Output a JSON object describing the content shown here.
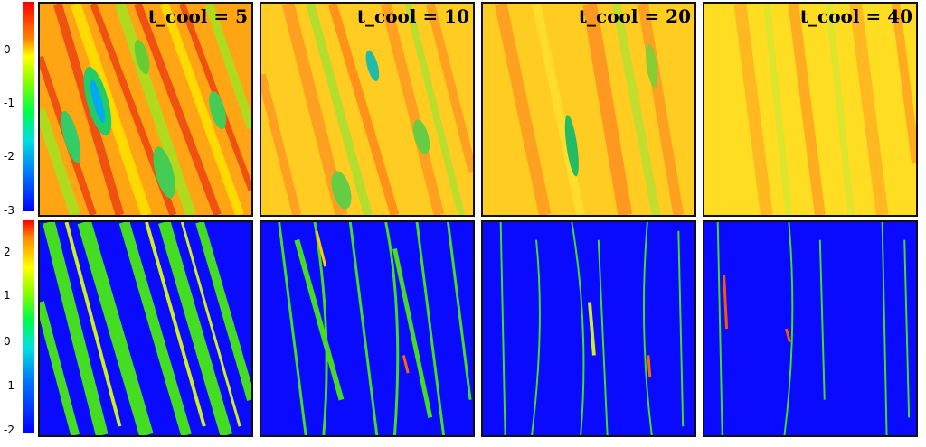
{
  "colorbar_top": {
    "ticks": [
      "0",
      "-1",
      "-2",
      "-3"
    ]
  },
  "colorbar_bottom": {
    "ticks": [
      "2",
      "1",
      "0",
      "-1",
      "-2"
    ]
  },
  "panels": [
    {
      "label": "t_cool = 5"
    },
    {
      "label": "t_cool = 10"
    },
    {
      "label": "t_cool = 20"
    },
    {
      "label": "t_cool = 40"
    }
  ],
  "colors": {
    "red": "#ff2a00",
    "orange": "#ff8c00",
    "yellow": "#ffee00",
    "green": "#22dd22",
    "cyan": "#00d0e0",
    "blue": "#0a0aff"
  }
}
